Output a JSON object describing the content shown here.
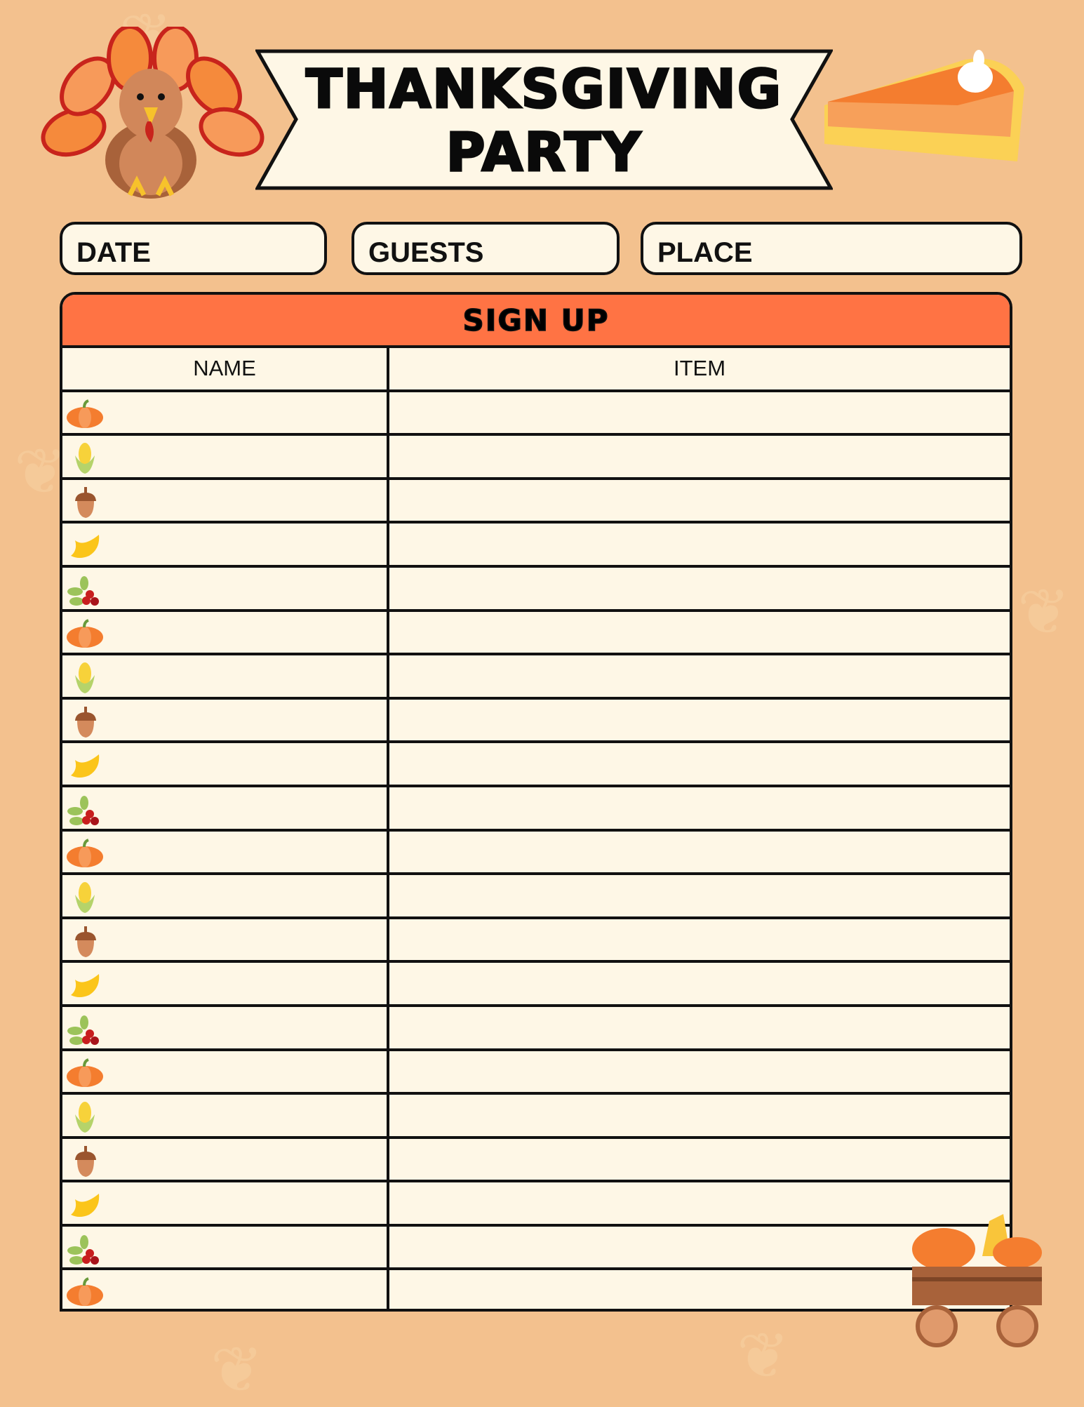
{
  "header": {
    "title_line1": "THANKSGIVING",
    "title_line2": "PARTY"
  },
  "fields": [
    {
      "label": "DATE"
    },
    {
      "label": "GUESTS"
    },
    {
      "label": "PLACE"
    }
  ],
  "table": {
    "title": "SIGN UP",
    "columns": [
      "NAME",
      "ITEM"
    ],
    "rows": [
      {
        "icon": "pumpkin-icon"
      },
      {
        "icon": "corn-icon"
      },
      {
        "icon": "acorn-icon"
      },
      {
        "icon": "leaf-icon"
      },
      {
        "icon": "berries-icon"
      },
      {
        "icon": "pumpkin-icon"
      },
      {
        "icon": "corn-icon"
      },
      {
        "icon": "acorn-icon"
      },
      {
        "icon": "leaf-icon"
      },
      {
        "icon": "berries-icon"
      },
      {
        "icon": "pumpkin-icon"
      },
      {
        "icon": "corn-icon"
      },
      {
        "icon": "acorn-icon"
      },
      {
        "icon": "leaf-icon"
      },
      {
        "icon": "berries-icon"
      },
      {
        "icon": "pumpkin-icon"
      },
      {
        "icon": "corn-icon"
      },
      {
        "icon": "acorn-icon"
      },
      {
        "icon": "leaf-icon"
      },
      {
        "icon": "berries-icon"
      },
      {
        "icon": "pumpkin-icon"
      }
    ]
  },
  "colors": {
    "background": "#f3c18e",
    "paper": "#fef7e6",
    "accent": "#ff7344",
    "ink": "#111111"
  }
}
